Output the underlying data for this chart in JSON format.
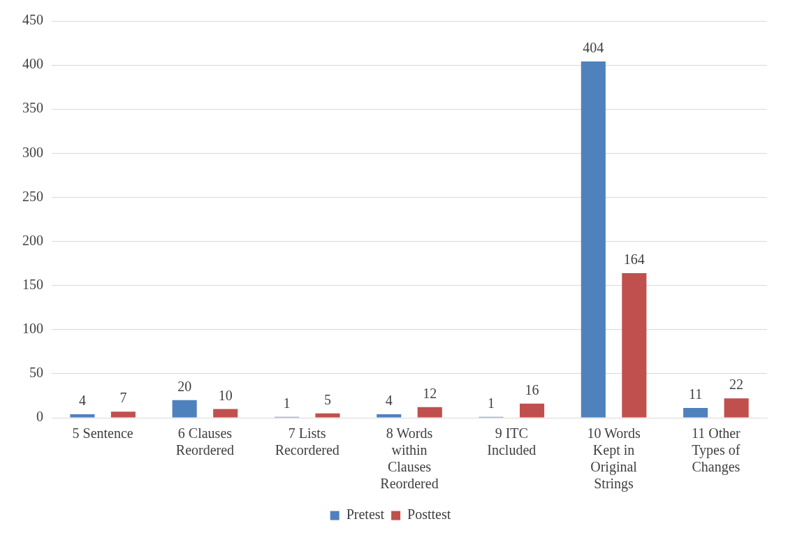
{
  "chart_data": {
    "type": "bar",
    "categories": [
      "5 Sentence",
      "6 Clauses Reordered",
      "7 Lists Recordered",
      "8 Words within Clauses Reordered",
      "9 ITC Included",
      "10 Words Kept in Original Strings",
      "11 Other Types of Changes"
    ],
    "series": [
      {
        "name": "Pretest",
        "color": "#4f81bd",
        "values": [
          4,
          20,
          1,
          4,
          1,
          404,
          11
        ]
      },
      {
        "name": "Posttest",
        "color": "#c0504d",
        "values": [
          7,
          10,
          5,
          12,
          16,
          164,
          22
        ]
      }
    ],
    "ylim": [
      0,
      450
    ],
    "yticks": [
      0,
      50,
      100,
      150,
      200,
      250,
      300,
      350,
      400,
      450
    ],
    "grid": "y",
    "legend": "bottom",
    "data_labels": true
  }
}
